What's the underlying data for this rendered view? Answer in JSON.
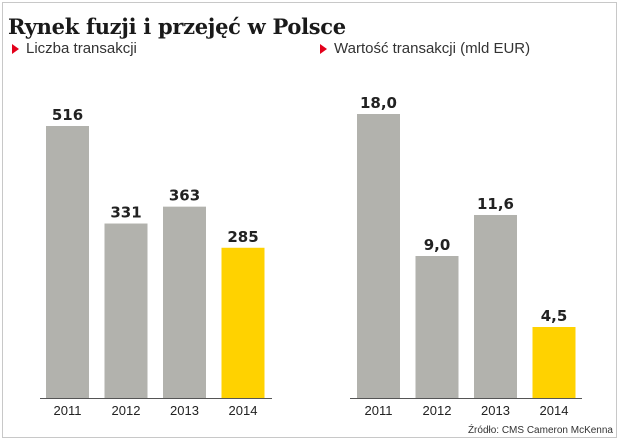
{
  "title": "Rynek fuzji i przejęć w Polsce",
  "source": "Źródło: CMS Cameron McKenna",
  "colors": {
    "bar": "#b2b2ad",
    "highlight": "#ffd200",
    "axis": "#555555",
    "marker": "#e3001b"
  },
  "chart_data": [
    {
      "type": "bar",
      "title": "Liczba transakcji",
      "categories": [
        "2011",
        "2012",
        "2013",
        "2014"
      ],
      "values": [
        516,
        331,
        363,
        285
      ],
      "labels": [
        "516",
        "331",
        "363",
        "285"
      ],
      "highlight_index": 3,
      "ylim": [
        0,
        516
      ],
      "grid": false,
      "legend": "none"
    },
    {
      "type": "bar",
      "title": "Wartość transakcji (mld EUR)",
      "categories": [
        "2011",
        "2012",
        "2013",
        "2014"
      ],
      "values": [
        18.0,
        9.0,
        11.6,
        4.5
      ],
      "labels": [
        "18,0",
        "9,0",
        "11,6",
        "4,5"
      ],
      "highlight_index": 3,
      "ylim": [
        0,
        18.0
      ],
      "grid": false,
      "legend": "none"
    }
  ]
}
